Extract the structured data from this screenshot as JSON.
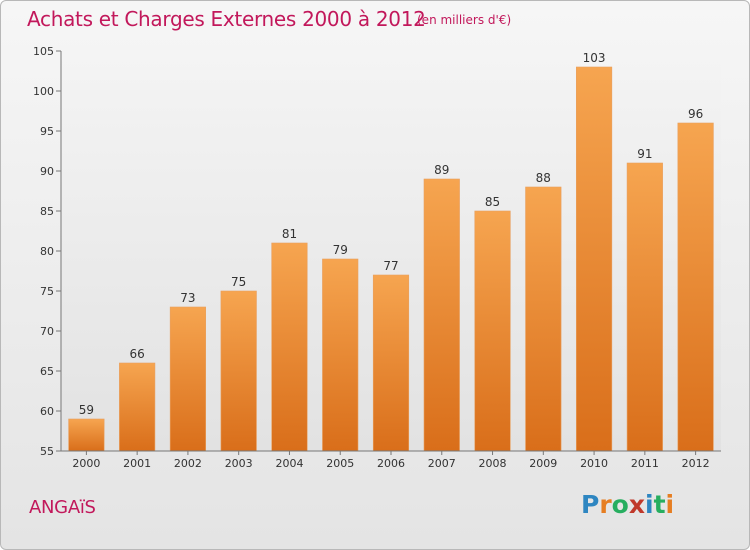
{
  "header": {
    "title": "Achats et Charges Externes 2000 à 2012",
    "subtitle": "(en milliers d'€)"
  },
  "footer": {
    "town": "ANGAïS",
    "logo_text": "Proxiti",
    "logo_letters": [
      {
        "char": "P",
        "color": "#2e86c1"
      },
      {
        "char": "r",
        "color": "#e67e22"
      },
      {
        "char": "o",
        "color": "#27ae60"
      },
      {
        "char": "x",
        "color": "#c0392b"
      },
      {
        "char": "i",
        "color": "#2e86c1"
      },
      {
        "char": "t",
        "color": "#27ae60"
      },
      {
        "char": "i",
        "color": "#e67e22"
      }
    ]
  },
  "colors": {
    "bar_top": "#f6a550",
    "bar_bottom": "#d96e1a",
    "accent": "#c2185b"
  },
  "chart_data": {
    "type": "bar",
    "title": "Achats et Charges Externes 2000 à 2012",
    "subtitle": "(en milliers d'€)",
    "categories": [
      "2000",
      "2001",
      "2002",
      "2003",
      "2004",
      "2005",
      "2006",
      "2007",
      "2008",
      "2009",
      "2010",
      "2011",
      "2012"
    ],
    "values": [
      59,
      66,
      73,
      75,
      81,
      79,
      77,
      89,
      85,
      88,
      103,
      91,
      96
    ],
    "value_labels": [
      "59",
      "66",
      "73",
      "75",
      "81",
      "79",
      "77",
      "89",
      "85",
      "88",
      "103",
      "91",
      "96"
    ],
    "ylim": [
      55,
      105
    ],
    "yticks": [
      55,
      60,
      65,
      70,
      75,
      80,
      85,
      90,
      95,
      100,
      105
    ],
    "grid": false,
    "xlabel": "",
    "ylabel": ""
  }
}
